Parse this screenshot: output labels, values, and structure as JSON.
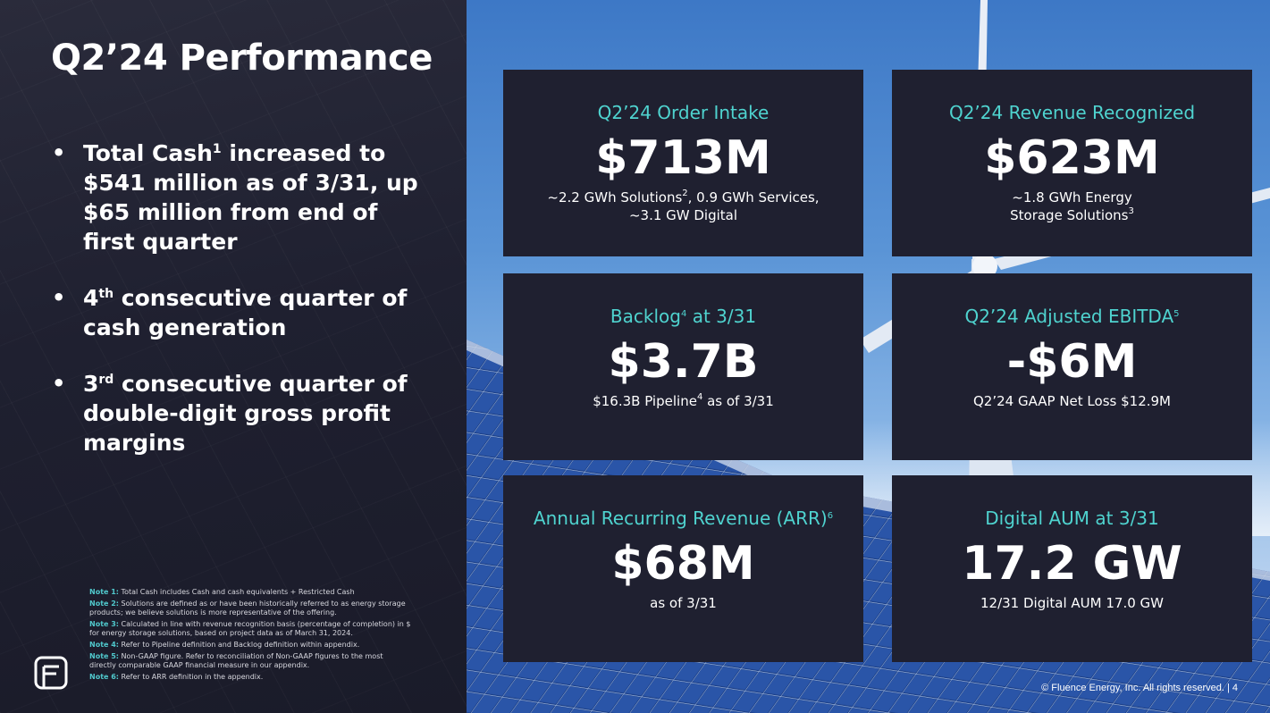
{
  "title": "Q2’24 Performance",
  "bullets": [
    {
      "pre": "Total Cash",
      "sup": "1",
      "post": " increased to $541 million as of 3/31, up $65 million from end of first quarter"
    },
    {
      "pre": "4",
      "sup": "th",
      "post": " consecutive quarter of cash generation"
    },
    {
      "pre": "3",
      "sup": "rd",
      "post": " consecutive quarter of double-digit gross profit margins"
    }
  ],
  "cards": [
    {
      "label": "Q2’24 Order Intake",
      "label_sup": "",
      "label_post": "",
      "value": "$713M",
      "sub1": "~2.2 GWh Solutions",
      "sub1_sup": "2",
      "sub1_post": ", 0.9 GWh Services,",
      "sub2": "~3.1 GW Digital",
      "sub2_sup": ""
    },
    {
      "label": "Q2’24 Revenue Recognized",
      "label_sup": "",
      "label_post": "",
      "value": "$623M",
      "sub1": "~1.8 GWh Energy",
      "sub1_sup": "",
      "sub1_post": "",
      "sub2": "Storage Solutions",
      "sub2_sup": "3"
    },
    {
      "label": "Backlog",
      "label_sup": "4",
      "label_post": " at 3/31",
      "value": "$3.7B",
      "sub1": "$16.3B Pipeline",
      "sub1_sup": "4",
      "sub1_post": " as of 3/31",
      "sub2": "",
      "sub2_sup": ""
    },
    {
      "label": "Q2’24 Adjusted EBITDA",
      "label_sup": "5",
      "label_post": "",
      "value": "-$6M",
      "sub1": "Q2’24 GAAP Net Loss $12.9M",
      "sub1_sup": "",
      "sub1_post": "",
      "sub2": "",
      "sub2_sup": ""
    },
    {
      "label": "Annual Recurring Revenue (ARR)",
      "label_sup": "6",
      "label_post": "",
      "value": "$68M",
      "sub1": "as of 3/31",
      "sub1_sup": "",
      "sub1_post": "",
      "sub2": "",
      "sub2_sup": ""
    },
    {
      "label": "Digital AUM at 3/31",
      "label_sup": "",
      "label_post": "",
      "value": "17.2 GW",
      "sub1": "12/31 Digital AUM 17.0 GW",
      "sub1_sup": "",
      "sub1_post": "",
      "sub2": "",
      "sub2_sup": ""
    }
  ],
  "notes": [
    {
      "label": "Note 1:",
      "text": " Total Cash includes Cash and cash equivalents + Restricted Cash"
    },
    {
      "label": "Note 2:",
      "text": " Solutions are defined as or have been historically referred to as energy storage products; we believe solutions is more representative of the offering."
    },
    {
      "label": "Note 3:",
      "text": " Calculated in line with revenue recognition basis (percentage of completion) in $ for energy storage solutions,  based on project data as of March 31, 2024."
    },
    {
      "label": "Note 4:",
      "text": " Refer to Pipeline definition and Backlog definition within appendix."
    },
    {
      "label": "Note 5:",
      "text": " Non-GAAP figure. Refer to reconciliation of Non-GAAP figures to the most directly comparable GAAP financial measure in our appendix."
    },
    {
      "label": "Note 6:",
      "text": "  Refer to ARR definition in the appendix."
    }
  ],
  "footer": "© Fluence Energy, Inc. All rights reserved.  |  4",
  "colors": {
    "accent": "#4fd3cf",
    "panel": "#1f2030",
    "note_label": "#50c8cc"
  },
  "logo_icon": "fluence-logo-icon"
}
